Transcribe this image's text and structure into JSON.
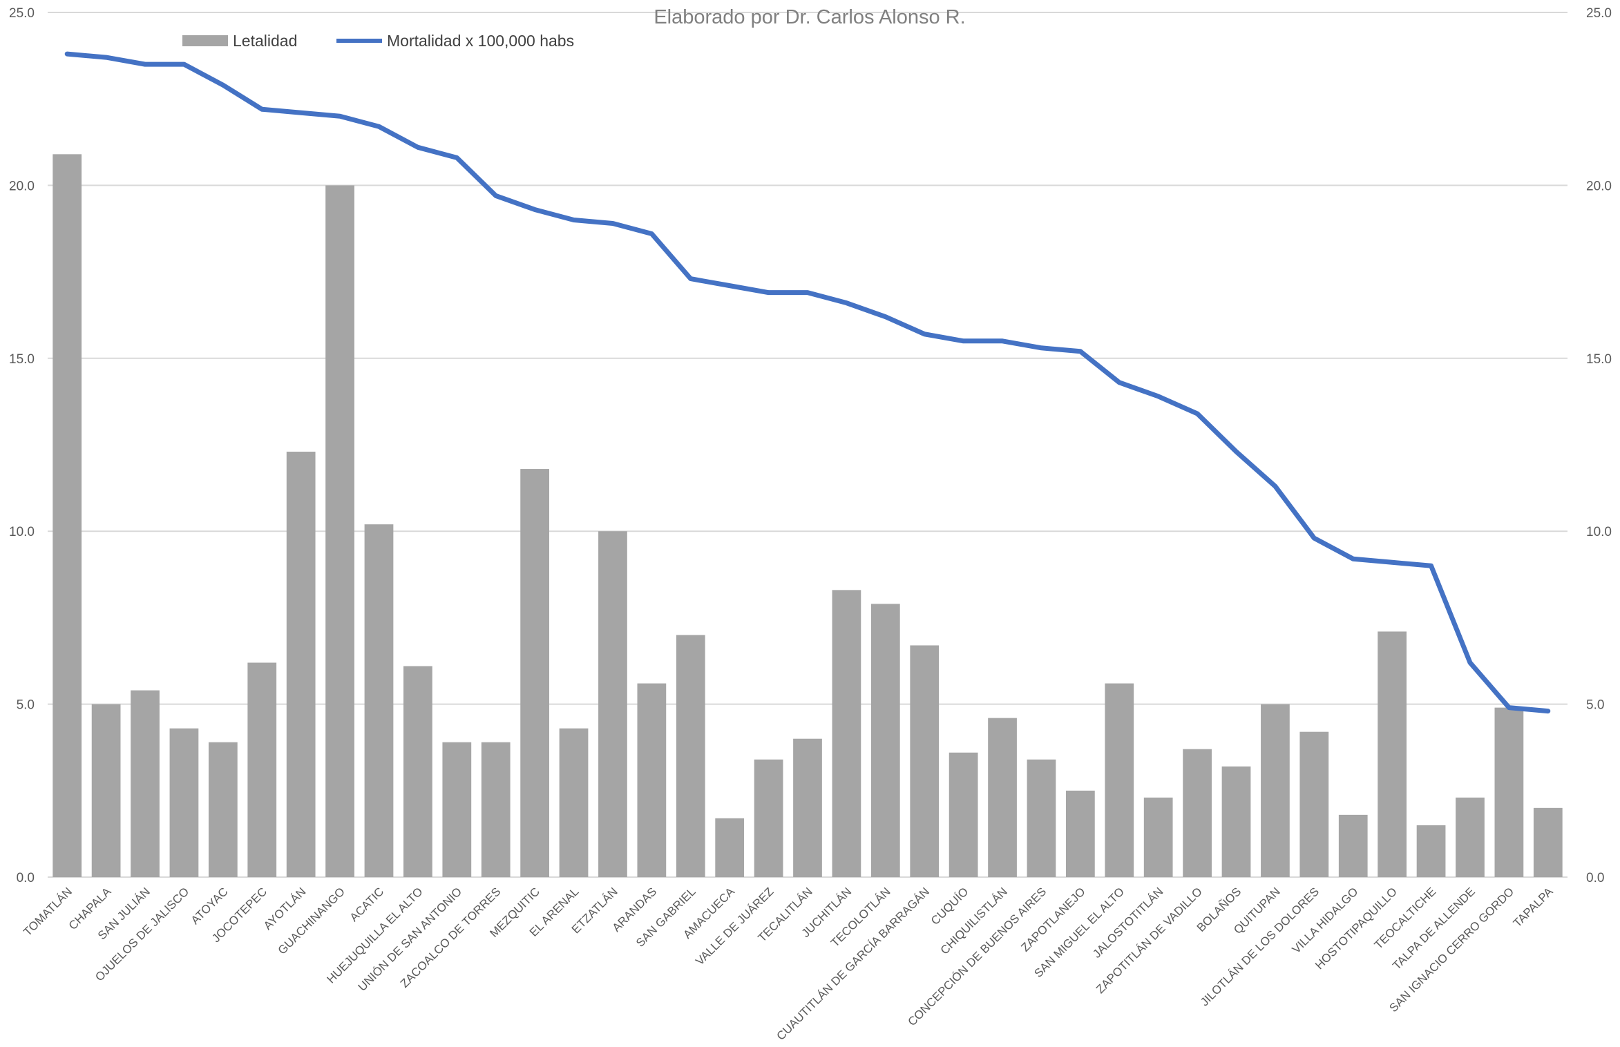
{
  "chart_data": {
    "type": "bar",
    "title": "Elaborado por Dr. Carlos Alonso R.",
    "categories": [
      "TOMATLÁN",
      "CHAPALA",
      "SAN JULIÁN",
      "OJUELOS DE JALISCO",
      "ATOYAC",
      "JOCOTEPEC",
      "AYOTLÁN",
      "GUACHINANGO",
      "ACATIC",
      "HUEJUQUILLA EL ALTO",
      "UNIÓN DE SAN ANTONIO",
      "ZACOALCO DE TORRES",
      "MEZQUITIC",
      "EL ARENAL",
      "ETZATLÁN",
      "ARANDAS",
      "SAN GABRIEL",
      "AMACUECA",
      "VALLE DE JUÁREZ",
      "TECALITLÁN",
      "JUCHITLÁN",
      "TECOLOTLÁN",
      "CUAUTITLÁN DE GARCÍA BARRAGÁN",
      "CUQUÍO",
      "CHIQUILISTLÁN",
      "CONCEPCIÓN DE BUENOS AIRES",
      "ZAPOTLANEJO",
      "SAN MIGUEL EL ALTO",
      "JALOSTOTITLÁN",
      "ZAPOTITLÁN DE VADILLO",
      "BOLAÑOS",
      "QUITUPAN",
      "JILOTLÁN DE LOS DOLORES",
      "VILLA HIDALGO",
      "HOSTOTIPAQUILLO",
      "TEOCALTICHE",
      "TALPA DE ALLENDE",
      "SAN IGNACIO CERRO GORDO",
      "TAPALPA"
    ],
    "series": [
      {
        "name": "Letalidad",
        "type": "bar",
        "axis": "left",
        "color": "#a5a5a5",
        "values": [
          20.9,
          5.0,
          5.4,
          4.3,
          3.9,
          6.2,
          12.3,
          20.0,
          10.2,
          6.1,
          3.9,
          3.9,
          11.8,
          4.3,
          10.0,
          5.6,
          7.0,
          1.7,
          3.4,
          4.0,
          8.3,
          7.9,
          6.7,
          3.6,
          4.6,
          3.4,
          2.5,
          5.6,
          2.3,
          3.7,
          3.2,
          5.0,
          4.2,
          1.8,
          7.1,
          1.5,
          2.3,
          4.9,
          2.0
        ]
      },
      {
        "name": "Mortalidad x 100,000 habs",
        "type": "line",
        "axis": "right",
        "color": "#4472c4",
        "values": [
          23.8,
          23.7,
          23.5,
          23.5,
          22.9,
          22.2,
          22.1,
          22.0,
          21.7,
          21.1,
          20.8,
          19.7,
          19.3,
          19.0,
          18.9,
          18.6,
          17.3,
          17.1,
          16.9,
          16.9,
          16.6,
          16.2,
          15.7,
          15.5,
          15.5,
          15.3,
          15.2,
          14.3,
          13.9,
          13.4,
          12.3,
          11.3,
          9.8,
          9.2,
          9.1,
          9.0,
          6.2,
          4.9,
          4.8
        ]
      }
    ],
    "ylim": [
      0,
      25
    ],
    "y2lim": [
      0,
      25
    ],
    "yticks": [
      "0.0",
      "5.0",
      "10.0",
      "15.0",
      "20.0",
      "25.0"
    ],
    "grid": true,
    "legend_position": "top-left"
  }
}
